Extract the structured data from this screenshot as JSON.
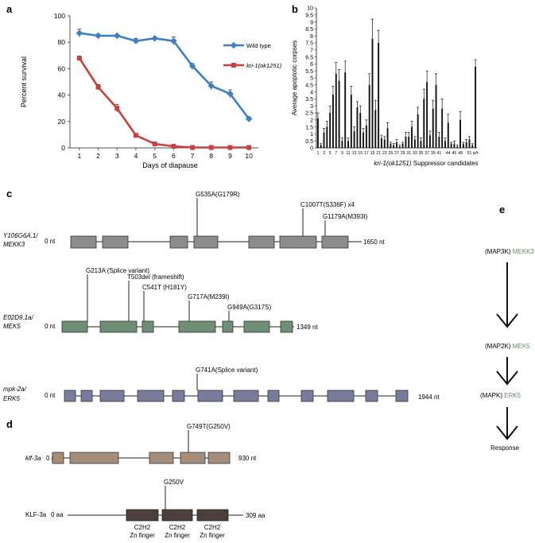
{
  "panels": {
    "a": "a",
    "b": "b",
    "c": "c",
    "d": "d",
    "e": "e"
  },
  "chart_data": [
    {
      "type": "line",
      "panel": "a",
      "title": "",
      "xlabel": "Days of diapause",
      "ylabel": "Percent survival",
      "x": [
        1,
        2,
        3,
        4,
        5,
        6,
        7,
        8,
        9,
        10
      ],
      "xlim": [
        0.5,
        10.5
      ],
      "ylim": [
        0,
        100
      ],
      "yticks": [
        0,
        20,
        40,
        60,
        80,
        100
      ],
      "legend": {
        "position": "top-right",
        "entries": [
          "Wild type",
          "kri-1(ok1251)"
        ]
      },
      "series": [
        {
          "name": "Wild type",
          "color": "#3f7fc3",
          "values": [
            87,
            85,
            85,
            81,
            83,
            81,
            62,
            47,
            41,
            22
          ],
          "errors": [
            3,
            1,
            1,
            2,
            1,
            3,
            2,
            3,
            3,
            1.5
          ]
        },
        {
          "name": "kri-1(ok1251)",
          "color": "#c9403c",
          "values": [
            68,
            46,
            30,
            9.5,
            3,
            1.2,
            0.3,
            0.3,
            0.3,
            0.3
          ],
          "errors": [
            1.5,
            2,
            3,
            1,
            0.6,
            0.4,
            0.3,
            0.3,
            0.3,
            0.3
          ]
        }
      ]
    },
    {
      "type": "bar",
      "panel": "b",
      "title": "",
      "xlabel": "kri-1(ok1251) Suppressor candidates",
      "ylabel": "Average apoptotic corpses",
      "ylim": [
        0,
        10
      ],
      "yticks": [
        0,
        0.5,
        1,
        1.5,
        2,
        2.5,
        3,
        3.5,
        4,
        4.5,
        5,
        5.5,
        6,
        6.5,
        7,
        7.5,
        8,
        8.5,
        9,
        9.5,
        10
      ],
      "categories": [
        "1",
        "2",
        "3",
        "4",
        "5",
        "6",
        "7",
        "8",
        "9",
        "10",
        "11",
        "12",
        "13",
        "14",
        "15",
        "16",
        "17",
        "18",
        "19",
        "20",
        "21",
        "22",
        "23",
        "24",
        "25",
        "26",
        "27",
        "28",
        "29",
        "30",
        "31",
        "32",
        "33",
        "34",
        "35",
        "36",
        "37",
        "38",
        "39",
        "40",
        "41",
        "42",
        "43",
        "44",
        "45",
        "46",
        "47",
        "48",
        "49",
        "50",
        "51",
        "52",
        "w/t"
      ],
      "tick_labels": [
        "1",
        "3",
        "5",
        "7",
        "9",
        "11",
        "13",
        "15",
        "17",
        "19",
        "21",
        "23",
        "25",
        "27",
        "29",
        "31",
        "33",
        "35",
        "37",
        "39",
        "41",
        "44",
        "46",
        "48",
        "51",
        "w/t"
      ],
      "values": [
        2.1,
        0.2,
        1.1,
        1.5,
        2.5,
        3.8,
        5.3,
        4.8,
        0.5,
        5.4,
        0.5,
        3.8,
        1.2,
        2.9,
        2.5,
        1.1,
        1.6,
        4.5,
        7.8,
        2.7,
        7.5,
        0.7,
        0.6,
        1.4,
        0.3,
        0.2,
        0.4,
        0.1,
        0.3,
        0.8,
        0.8,
        1.5,
        0.6,
        2.4,
        0.5,
        3.5,
        4.7,
        0.9,
        2.8,
        4.5,
        0.8,
        2.8,
        0.5,
        1.8,
        0.3,
        0.3,
        0.1,
        2.0,
        0.3,
        0.4,
        0.6,
        0.2,
        5.8
      ],
      "errors": [
        0.4,
        0.1,
        0.3,
        0.4,
        0.5,
        0.6,
        0.8,
        0.8,
        0.2,
        0.8,
        0.2,
        0.6,
        0.3,
        0.4,
        0.5,
        0.3,
        0.4,
        0.8,
        1.4,
        0.7,
        0.9,
        0.2,
        0.2,
        0.4,
        0.1,
        0.1,
        0.2,
        0.1,
        0.1,
        0.3,
        0.3,
        0.4,
        0.2,
        0.5,
        0.2,
        0.7,
        0.8,
        0.3,
        0.6,
        0.8,
        0.3,
        0.7,
        0.2,
        0.6,
        0.1,
        0.2,
        0.1,
        0.6,
        0.1,
        0.2,
        0.2,
        0.1,
        0.5
      ]
    }
  ],
  "panel_c": {
    "genes": [
      {
        "label_line1": "Y106G6A.1/",
        "label_line2": "MEKK3",
        "start": "0 nt",
        "end": "1650 nt",
        "color": "#8c8c8c",
        "mutations": [
          "G535A(G179R)",
          "C1007T(S336F) x4",
          "G1179A(M393I)"
        ]
      },
      {
        "label_line1": "E02D9.1a/",
        "label_line2": "MEK5",
        "start": "0 nt",
        "end": "1349 nt",
        "color": "#6e8f76",
        "mutations": [
          "G213A (Splice variant)",
          "T503del (frameshift)",
          "C541T (H181Y)",
          "G717A(M239I)",
          "G949A(G317S)"
        ]
      },
      {
        "label_line1": "mpk-2a/",
        "label_line2": "ERK5",
        "start": "0 nt",
        "end": "1944 nt",
        "color": "#7a7c9e",
        "mutations": [
          "G741A(Splice variant)"
        ]
      }
    ]
  },
  "panel_d": {
    "gene": {
      "label": "klf-3a",
      "start": "0 nt",
      "end": "930 nt",
      "color": "#a58d7a",
      "mutation": "G749T(G250V)"
    },
    "protein": {
      "label": "KLF-3a",
      "start": "0 aa",
      "end": "309 aa",
      "color": "#4b3f3c",
      "mutation": "G250V",
      "domains": [
        {
          "line1": "C2H2",
          "line2": "Zn finger"
        },
        {
          "line1": "C2H2",
          "line2": "Zn finger"
        },
        {
          "line1": "C2H2",
          "line2": "Zn finger"
        }
      ]
    }
  },
  "panel_e": {
    "steps": [
      {
        "prefix": "(MAP3K)",
        "name": "MEKK3"
      },
      {
        "prefix": "(MAP2K)",
        "name": "MEK5"
      },
      {
        "prefix": "(MAPK)",
        "name": "ERK5"
      }
    ],
    "response": "Response",
    "name_color": "#6a8c6e"
  }
}
